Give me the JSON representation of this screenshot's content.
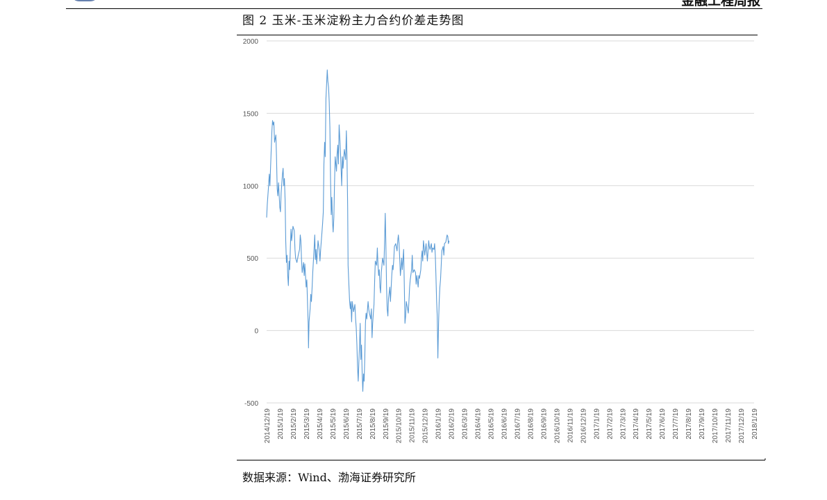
{
  "header": {
    "report_name": "金融工程周报"
  },
  "figure": {
    "title": "图 2  玉米-玉米淀粉主力合约价差走势图",
    "source": "数据来源：Wind、渤海证券研究所"
  },
  "chart_data": {
    "type": "line",
    "title": "",
    "xlabel": "",
    "ylabel": "",
    "ylim": [
      -500,
      2000
    ],
    "yticks": [
      -500,
      0,
      500,
      1000,
      1500,
      2000
    ],
    "grid": true,
    "legend": "none",
    "line_color": "#5b9bd5",
    "x_ticks": [
      "2014/12/19",
      "2015/1/19",
      "2015/2/19",
      "2015/3/19",
      "2015/4/19",
      "2015/5/19",
      "2015/6/19",
      "2015/7/19",
      "2015/8/19",
      "2015/9/19",
      "2015/10/19",
      "2015/11/19",
      "2015/12/19",
      "2016/1/19",
      "2016/2/19",
      "2016/3/19",
      "2016/4/19",
      "2016/5/19",
      "2016/6/19",
      "2016/7/19",
      "2016/8/19",
      "2016/9/19",
      "2016/10/19",
      "2016/11/19",
      "2016/12/19",
      "2017/1/19",
      "2017/2/19",
      "2017/3/19",
      "2017/4/19",
      "2017/5/19",
      "2017/6/19",
      "2017/7/19",
      "2017/8/19",
      "2017/9/19",
      "2017/10/19",
      "2017/11/19",
      "2017/12/19",
      "2018/1/19"
    ],
    "series": [
      {
        "values": [
          [
            0,
            780
          ],
          [
            0.05,
            870
          ],
          [
            0.15,
            1000
          ],
          [
            0.2,
            1080
          ],
          [
            0.25,
            1000
          ],
          [
            0.35,
            1250
          ],
          [
            0.4,
            1380
          ],
          [
            0.45,
            1450
          ],
          [
            0.5,
            1420
          ],
          [
            0.55,
            1440
          ],
          [
            0.6,
            1300
          ],
          [
            0.7,
            1350
          ],
          [
            0.75,
            1200
          ],
          [
            0.8,
            980
          ],
          [
            0.85,
            930
          ],
          [
            0.9,
            1020
          ],
          [
            1.0,
            850
          ],
          [
            1.05,
            820
          ],
          [
            1.1,
            950
          ],
          [
            1.2,
            1080
          ],
          [
            1.25,
            1120
          ],
          [
            1.3,
            1000
          ],
          [
            1.35,
            1050
          ],
          [
            1.4,
            900
          ],
          [
            1.45,
            620
          ],
          [
            1.5,
            470
          ],
          [
            1.55,
            520
          ],
          [
            1.6,
            380
          ],
          [
            1.65,
            310
          ],
          [
            1.7,
            480
          ],
          [
            1.75,
            420
          ],
          [
            1.8,
            580
          ],
          [
            1.85,
            700
          ],
          [
            1.9,
            620
          ],
          [
            2.0,
            720
          ],
          [
            2.1,
            690
          ],
          [
            2.15,
            560
          ],
          [
            2.2,
            500
          ],
          [
            2.3,
            470
          ],
          [
            2.4,
            520
          ],
          [
            2.5,
            560
          ],
          [
            2.55,
            660
          ],
          [
            2.6,
            620
          ],
          [
            2.65,
            480
          ],
          [
            2.7,
            400
          ],
          [
            2.8,
            470
          ],
          [
            2.85,
            380
          ],
          [
            2.9,
            460
          ],
          [
            3.0,
            300
          ],
          [
            3.05,
            350
          ],
          [
            3.1,
            200
          ],
          [
            3.15,
            50
          ],
          [
            3.18,
            -120
          ],
          [
            3.22,
            60
          ],
          [
            3.3,
            150
          ],
          [
            3.35,
            250
          ],
          [
            3.4,
            200
          ],
          [
            3.45,
            300
          ],
          [
            3.5,
            400
          ],
          [
            3.6,
            560
          ],
          [
            3.65,
            660
          ],
          [
            3.7,
            490
          ],
          [
            3.75,
            560
          ],
          [
            3.8,
            460
          ],
          [
            3.9,
            620
          ],
          [
            4.0,
            550
          ],
          [
            4.05,
            480
          ],
          [
            4.1,
            560
          ],
          [
            4.2,
            680
          ],
          [
            4.25,
            740
          ],
          [
            4.3,
            820
          ],
          [
            4.35,
            1150
          ],
          [
            4.4,
            1300
          ],
          [
            4.45,
            1200
          ],
          [
            4.5,
            1600
          ],
          [
            4.6,
            1800
          ],
          [
            4.65,
            1720
          ],
          [
            4.7,
            1680
          ],
          [
            4.75,
            1580
          ],
          [
            4.8,
            1400
          ],
          [
            4.85,
            1050
          ],
          [
            4.9,
            800
          ],
          [
            4.95,
            920
          ],
          [
            5.0,
            750
          ],
          [
            5.05,
            680
          ],
          [
            5.1,
            780
          ],
          [
            5.15,
            1000
          ],
          [
            5.2,
            1200
          ],
          [
            5.3,
            1100
          ],
          [
            5.35,
            1220
          ],
          [
            5.4,
            1280
          ],
          [
            5.45,
            1150
          ],
          [
            5.5,
            1420
          ],
          [
            5.6,
            1250
          ],
          [
            5.7,
            1000
          ],
          [
            5.75,
            1200
          ],
          [
            5.8,
            1120
          ],
          [
            5.9,
            1250
          ],
          [
            6.0,
            1180
          ],
          [
            6.05,
            1380
          ],
          [
            6.1,
            1200
          ],
          [
            6.15,
            850
          ],
          [
            6.18,
            450
          ],
          [
            6.25,
            300
          ],
          [
            6.3,
            200
          ],
          [
            6.35,
            150
          ],
          [
            6.4,
            200
          ],
          [
            6.45,
            60
          ],
          [
            6.5,
            200
          ],
          [
            6.6,
            130
          ],
          [
            6.7,
            180
          ],
          [
            6.75,
            80
          ],
          [
            6.8,
            20
          ],
          [
            6.85,
            -100
          ],
          [
            6.9,
            -250
          ],
          [
            6.95,
            -350
          ],
          [
            7.0,
            -220
          ],
          [
            7.05,
            -100
          ],
          [
            7.1,
            50
          ],
          [
            7.15,
            -200
          ],
          [
            7.2,
            -100
          ],
          [
            7.25,
            -300
          ],
          [
            7.3,
            -420
          ],
          [
            7.35,
            -300
          ],
          [
            7.4,
            -350
          ],
          [
            7.45,
            -200
          ],
          [
            7.5,
            50
          ],
          [
            7.55,
            120
          ],
          [
            7.6,
            80
          ],
          [
            7.7,
            200
          ],
          [
            7.75,
            150
          ],
          [
            7.8,
            120
          ],
          [
            7.9,
            80
          ],
          [
            7.95,
            150
          ],
          [
            8.0,
            -50
          ],
          [
            8.05,
            50
          ],
          [
            8.1,
            120
          ],
          [
            8.15,
            180
          ],
          [
            8.2,
            350
          ],
          [
            8.25,
            480
          ],
          [
            8.35,
            450
          ],
          [
            8.4,
            570
          ],
          [
            8.45,
            460
          ],
          [
            8.5,
            380
          ],
          [
            8.55,
            420
          ],
          [
            8.6,
            300
          ],
          [
            8.65,
            260
          ],
          [
            8.7,
            400
          ],
          [
            8.8,
            500
          ],
          [
            8.9,
            450
          ],
          [
            8.95,
            600
          ],
          [
            9.0,
            810
          ],
          [
            9.05,
            600
          ],
          [
            9.1,
            300
          ],
          [
            9.15,
            150
          ],
          [
            9.2,
            100
          ],
          [
            9.25,
            220
          ],
          [
            9.35,
            300
          ],
          [
            9.4,
            200
          ],
          [
            9.5,
            380
          ],
          [
            9.55,
            450
          ],
          [
            9.6,
            420
          ],
          [
            9.65,
            490
          ],
          [
            9.7,
            580
          ],
          [
            9.8,
            600
          ],
          [
            9.9,
            550
          ],
          [
            9.95,
            620
          ],
          [
            10.0,
            660
          ],
          [
            10.05,
            600
          ],
          [
            10.1,
            500
          ],
          [
            10.15,
            380
          ],
          [
            10.2,
            430
          ],
          [
            10.25,
            500
          ],
          [
            10.3,
            420
          ],
          [
            10.4,
            560
          ],
          [
            10.45,
            300
          ],
          [
            10.5,
            50
          ],
          [
            10.55,
            100
          ],
          [
            10.6,
            200
          ],
          [
            10.7,
            150
          ],
          [
            10.75,
            120
          ],
          [
            10.8,
            200
          ],
          [
            10.85,
            300
          ],
          [
            10.9,
            350
          ],
          [
            11.0,
            420
          ],
          [
            11.05,
            520
          ],
          [
            11.1,
            400
          ],
          [
            11.2,
            420
          ],
          [
            11.3,
            400
          ],
          [
            11.35,
            320
          ],
          [
            11.4,
            380
          ],
          [
            11.5,
            300
          ],
          [
            11.55,
            380
          ],
          [
            11.6,
            360
          ],
          [
            11.7,
            420
          ],
          [
            11.75,
            500
          ],
          [
            11.8,
            550
          ],
          [
            11.85,
            480
          ],
          [
            11.9,
            620
          ],
          [
            11.95,
            580
          ],
          [
            12.0,
            520
          ],
          [
            12.1,
            600
          ],
          [
            12.2,
            480
          ],
          [
            12.3,
            620
          ],
          [
            12.35,
            580
          ],
          [
            12.4,
            560
          ],
          [
            12.5,
            600
          ],
          [
            12.55,
            540
          ],
          [
            12.6,
            570
          ],
          [
            12.7,
            560
          ],
          [
            12.75,
            600
          ],
          [
            12.8,
            520
          ],
          [
            12.85,
            380
          ],
          [
            12.9,
            200
          ],
          [
            12.95,
            100
          ],
          [
            13.0,
            -190
          ],
          [
            13.05,
            50
          ],
          [
            13.1,
            200
          ],
          [
            13.15,
            300
          ],
          [
            13.2,
            350
          ],
          [
            13.25,
            450
          ],
          [
            13.3,
            550
          ],
          [
            13.4,
            580
          ],
          [
            13.45,
            520
          ],
          [
            13.5,
            600
          ],
          [
            13.6,
            610
          ],
          [
            13.7,
            660
          ],
          [
            13.75,
            650
          ],
          [
            13.8,
            600
          ],
          [
            13.85,
            620
          ]
        ]
      }
    ]
  }
}
